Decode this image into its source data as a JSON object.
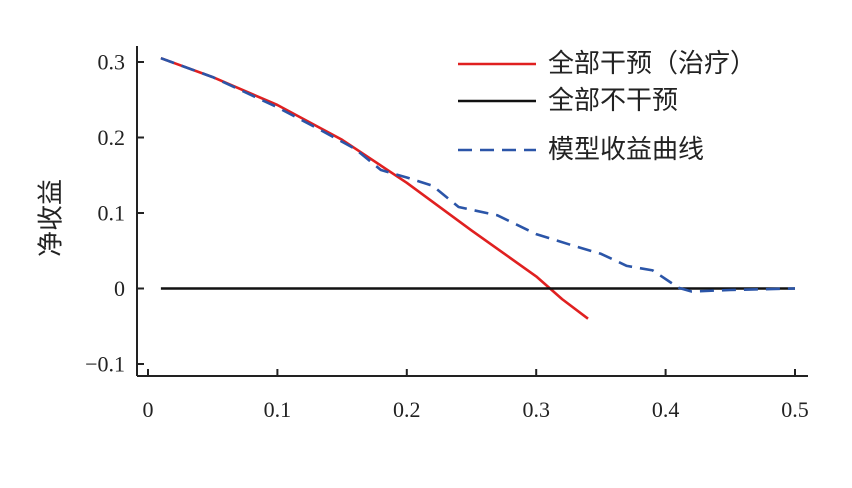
{
  "chart_data": {
    "type": "line",
    "title": "",
    "xlabel": "",
    "ylabel": "净收益",
    "xlim": [
      0,
      0.5
    ],
    "ylim": [
      -0.1,
      0.3
    ],
    "xticks": [
      0,
      0.1,
      0.2,
      0.3,
      0.4,
      0.5
    ],
    "xtick_labels": [
      "0",
      "0.1",
      "0.2",
      "0.3",
      "0.4",
      "0.5"
    ],
    "yticks": [
      -0.1,
      0,
      0.1,
      0.2,
      0.3
    ],
    "ytick_labels": [
      "−0.1",
      "0",
      "0.1",
      "0.2",
      "0.3"
    ],
    "grid": false,
    "legend_position": "top-right",
    "series": [
      {
        "name": "全部干预（治疗）",
        "color": "#e02020",
        "style": "solid",
        "x": [
          0.01,
          0.05,
          0.1,
          0.15,
          0.2,
          0.25,
          0.3,
          0.32,
          0.34
        ],
        "y": [
          0.305,
          0.28,
          0.243,
          0.197,
          0.14,
          0.077,
          0.016,
          -0.014,
          -0.04
        ]
      },
      {
        "name": "全部不干预",
        "color": "#111111",
        "style": "solid",
        "x": [
          0.01,
          0.5
        ],
        "y": [
          0,
          0
        ]
      },
      {
        "name": "模型收益曲线",
        "color": "#2b55a8",
        "style": "dashed",
        "x": [
          0.01,
          0.05,
          0.1,
          0.13,
          0.16,
          0.18,
          0.2,
          0.22,
          0.24,
          0.27,
          0.3,
          0.33,
          0.35,
          0.37,
          0.39,
          0.41,
          0.42,
          0.45,
          0.5
        ],
        "y": [
          0.305,
          0.28,
          0.24,
          0.213,
          0.185,
          0.157,
          0.147,
          0.136,
          0.108,
          0.097,
          0.072,
          0.056,
          0.046,
          0.03,
          0.024,
          0.001,
          -0.004,
          -0.002,
          0
        ]
      }
    ]
  }
}
